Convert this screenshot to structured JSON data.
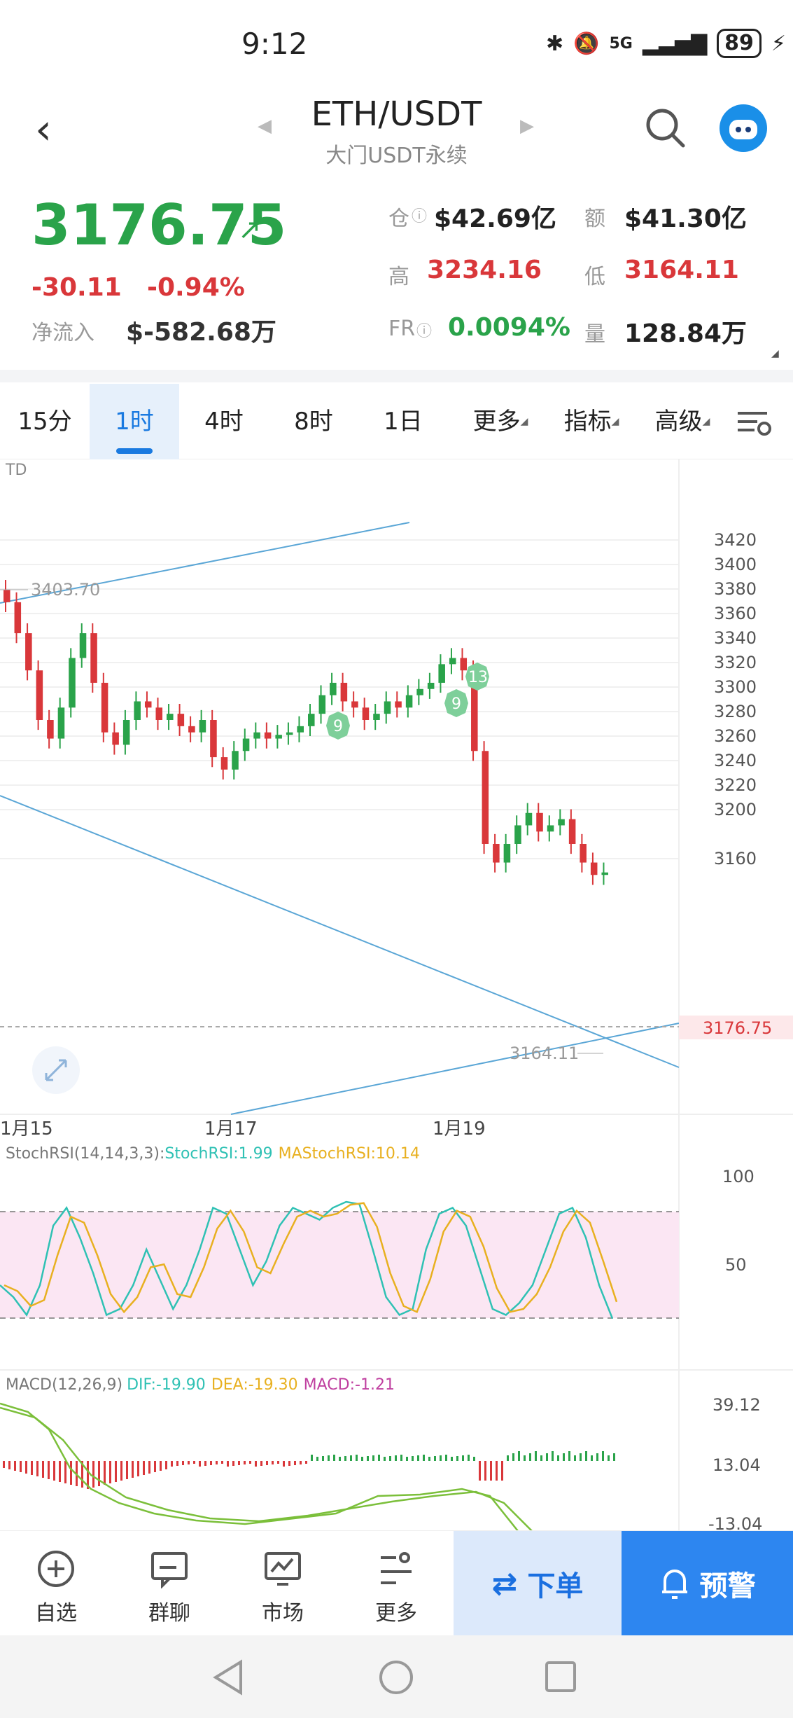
{
  "status": {
    "time": "9:12",
    "network": "5G",
    "battery": "89"
  },
  "header": {
    "symbol": "ETH/USDT",
    "subtitle": "大门USDT永续"
  },
  "ticker": {
    "price": "3176.75",
    "change": "-30.11",
    "change_pct": "-0.94%",
    "netflow_label": "净流入",
    "netflow": "$-582.68万",
    "position_label": "仓",
    "position": "$42.69亿",
    "amount_label": "额",
    "amount": "$41.30亿",
    "high_label": "高",
    "high": "3234.16",
    "low_label": "低",
    "low": "3164.11",
    "fr_label": "FR",
    "fr": "0.0094%",
    "volume_label": "量",
    "volume": "128.84万"
  },
  "tabs": [
    "15分",
    "1时",
    "4时",
    "8时",
    "1日",
    "更多",
    "指标",
    "高级"
  ],
  "active_tab": "1时",
  "chart_data": {
    "type": "candlestick",
    "main": {
      "indicator_label": "TD",
      "y_ticks": [
        "3420",
        "3400",
        "3380",
        "3360",
        "3340",
        "3320",
        "3300",
        "3280",
        "3260",
        "3240",
        "3220",
        "3200",
        "3160"
      ],
      "x_ticks": [
        "1月15",
        "1月17",
        "1月19"
      ],
      "high_marker": "3403.70",
      "low_marker": "3164.11",
      "last_price": "3176.75",
      "td_markers": [
        "9",
        "9",
        "13"
      ],
      "closes": [
        3395,
        3370,
        3340,
        3300,
        3285,
        3310,
        3350,
        3370,
        3330,
        3290,
        3280,
        3300,
        3315,
        3310,
        3300,
        3305,
        3295,
        3290,
        3300,
        3270,
        3260,
        3275,
        3285,
        3290,
        3285,
        3288,
        3290,
        3295,
        3305,
        3320,
        3330,
        3315,
        3310,
        3300,
        3305,
        3315,
        3310,
        3320,
        3325,
        3330,
        3345,
        3350,
        3340,
        3275,
        3200,
        3185,
        3200,
        3215,
        3225,
        3210,
        3215,
        3220,
        3200,
        3185,
        3175,
        3177
      ]
    },
    "stoch_rsi": {
      "label": "StochRSI(14,14,3,3):",
      "stoch_label": "StochRSI:1.99",
      "ma_label": "MAStochRSI:10.14",
      "y_ticks": [
        "100",
        "50"
      ],
      "values": [
        30,
        20,
        5,
        30,
        80,
        95,
        70,
        40,
        5,
        10,
        30,
        60,
        35,
        10,
        30,
        60,
        95,
        90,
        60,
        30,
        50,
        80,
        95,
        90,
        85,
        95,
        100,
        98,
        60,
        20,
        5,
        10,
        60,
        90,
        95,
        80,
        45,
        10,
        5,
        15,
        30,
        60,
        90,
        95,
        70,
        30,
        2
      ]
    },
    "macd": {
      "label": "MACD(12,26,9)",
      "dif_label": "DIF:-19.90",
      "dea_label": "DEA:-19.30",
      "macd_label": "MACD:-1.21",
      "y_ticks": [
        "39.12",
        "13.04",
        "-13.04"
      ]
    },
    "colors": {
      "up": "#2aa34a",
      "down": "#d9373a",
      "trend": "#5aa6d6",
      "stoch": "#2fc1b4",
      "ma": "#e8b020",
      "macd_dea": "#7bbf3a",
      "band": "#fbe6f3"
    }
  },
  "nav": [
    {
      "label": "自选",
      "icon": "plus-circle-icon"
    },
    {
      "label": "群聊",
      "icon": "chat-icon"
    },
    {
      "label": "市场",
      "icon": "market-icon"
    },
    {
      "label": "更多",
      "icon": "more-icon"
    }
  ],
  "order_label": "下单",
  "alert_label": "预警"
}
